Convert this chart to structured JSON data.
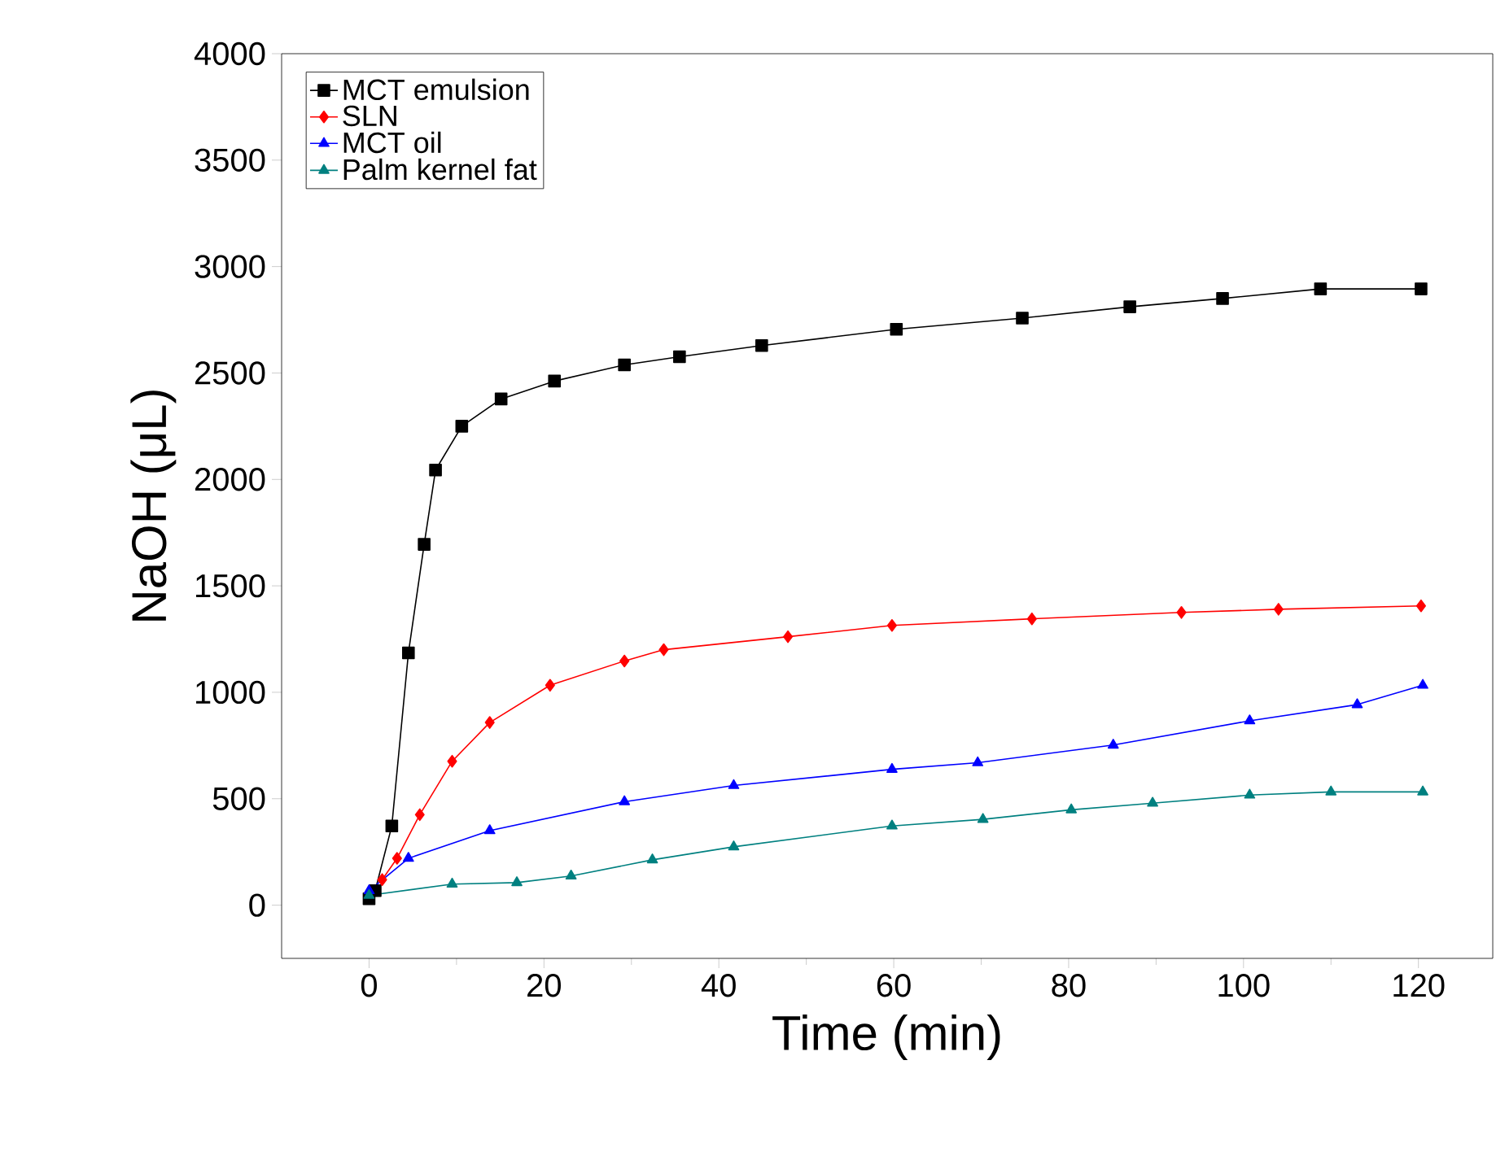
{
  "chart_data": {
    "type": "line",
    "xlabel": "Time (min)",
    "ylabel": "NaOH (μL)",
    "xlim": [
      -10,
      128.5
    ],
    "ylim": [
      -250,
      4000
    ],
    "xticks": [
      0,
      20,
      40,
      60,
      80,
      100,
      120
    ],
    "yticks": [
      0,
      500,
      1000,
      1500,
      2000,
      2500,
      3000,
      3500,
      4000
    ],
    "legend": "top left",
    "grid": false,
    "series": [
      {
        "name": "MCT emulsion",
        "color": "#000000",
        "marker": "square",
        "x": [
          0,
          0.7,
          2.6,
          4.5,
          6.3,
          7.6,
          10.6,
          15.1,
          21.2,
          29.2,
          35.5,
          44.9,
          60.3,
          74.7,
          87,
          97.6,
          108.8,
          120.3
        ],
        "values": [
          30,
          68,
          372,
          1185,
          1695,
          2044,
          2250,
          2378,
          2462,
          2538,
          2576,
          2629,
          2705,
          2758,
          2811,
          2850,
          2895,
          2895
        ]
      },
      {
        "name": "SLN",
        "color": "#ff0000",
        "marker": "diamond",
        "x": [
          1.5,
          3.2,
          5.8,
          9.5,
          13.8,
          20.7,
          29.2,
          33.7,
          47.9,
          59.8,
          75.8,
          92.9,
          104,
          120.3
        ],
        "values": [
          120,
          220,
          425,
          676,
          858,
          1033,
          1147,
          1200,
          1261,
          1314,
          1345,
          1375,
          1390,
          1406
        ]
      },
      {
        "name": "MCT oil",
        "color": "#0000ff",
        "marker": "triangle",
        "x": [
          0,
          4.5,
          13.8,
          29.2,
          41.7,
          59.8,
          69.6,
          85.1,
          100.7,
          113,
          120.5
        ],
        "values": [
          68,
          220,
          350,
          486,
          562,
          638,
          669,
          752,
          866,
          942,
          1033
        ]
      },
      {
        "name": "Palm kernel fat",
        "color": "#008080",
        "marker": "triangle",
        "x": [
          0,
          9.5,
          16.9,
          23.1,
          32.4,
          41.7,
          59.8,
          70.2,
          80.3,
          89.6,
          100.7,
          110,
          120.5
        ],
        "values": [
          46,
          99,
          106,
          137,
          213,
          274,
          372,
          403,
          448,
          479,
          517,
          532,
          532
        ]
      }
    ]
  }
}
